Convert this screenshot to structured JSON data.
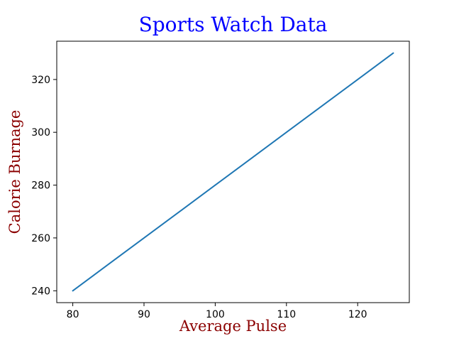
{
  "chart_data": {
    "type": "line",
    "title": "Sports Watch Data",
    "xlabel": "Average Pulse",
    "ylabel": "Calorie Burnage",
    "x": [
      80,
      85,
      90,
      95,
      100,
      105,
      110,
      115,
      120,
      125
    ],
    "y": [
      240,
      250,
      260,
      270,
      280,
      290,
      300,
      310,
      320,
      330
    ],
    "xticks": [
      80,
      90,
      100,
      110,
      120
    ],
    "yticks": [
      240,
      260,
      280,
      300,
      320
    ],
    "xlim": [
      77.75,
      127.25
    ],
    "ylim": [
      235.5,
      334.5
    ],
    "grid": false,
    "legend": "none",
    "colors": {
      "title": "#0000ff",
      "axis_label": "#8b0000",
      "line": "#1f77b4",
      "spine": "#000000",
      "tick": "#000000",
      "background": "#ffffff"
    }
  }
}
